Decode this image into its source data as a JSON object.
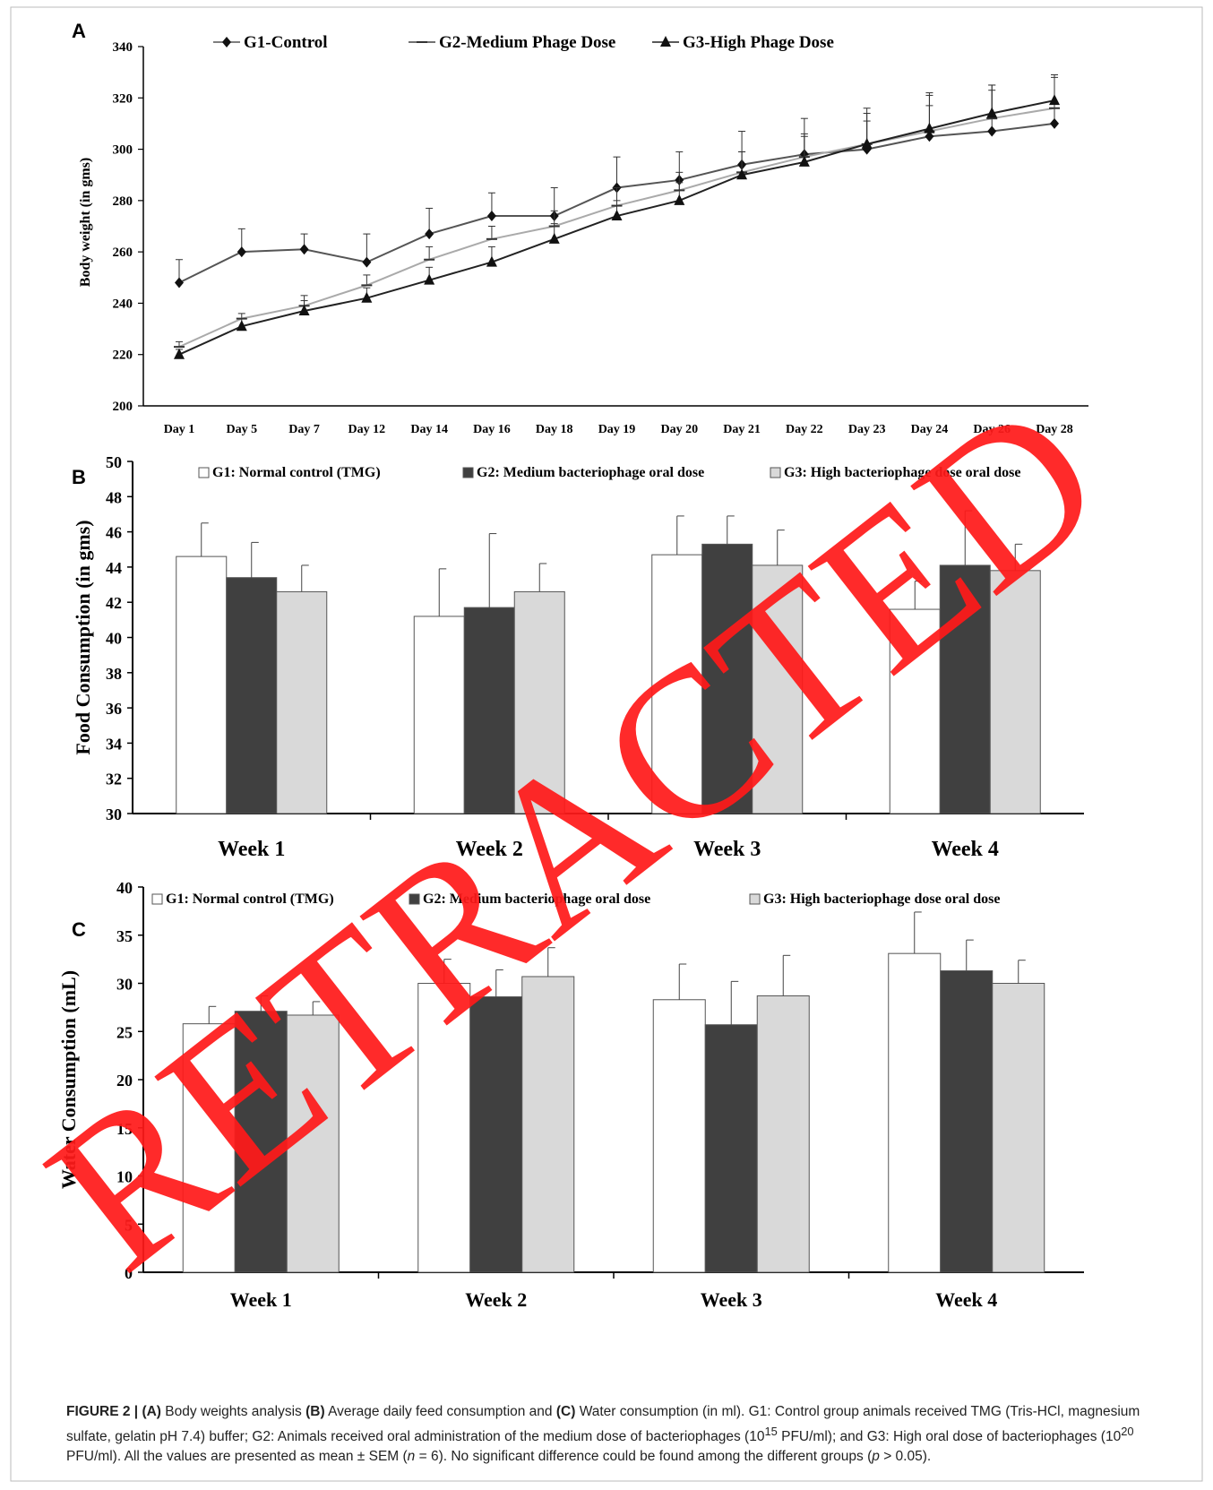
{
  "chart_data": [
    {
      "panel": "A",
      "type": "line",
      "ylabel": "Body weight (in gms)",
      "xlabel": "",
      "ylim": [
        200,
        340
      ],
      "yticks": [
        200,
        220,
        240,
        260,
        280,
        300,
        320,
        340
      ],
      "categories": [
        "Day 1",
        "Day 5",
        "Day 7",
        "Day 12",
        "Day 14",
        "Day 16",
        "Day 18",
        "Day 19",
        "Day 20",
        "Day 21",
        "Day 22",
        "Day 23",
        "Day 24",
        "Day 26",
        "Day 28"
      ],
      "legend_position": "top",
      "series": [
        {
          "name": "G1-Control",
          "marker": "diamond",
          "color": "#555555",
          "values": [
            248,
            260,
            261,
            256,
            267,
            274,
            274,
            285,
            288,
            294,
            298,
            300,
            305,
            307,
            310
          ],
          "err": [
            9,
            9,
            6,
            11,
            10,
            9,
            11,
            12,
            11,
            13,
            14,
            16,
            17,
            18,
            19
          ]
        },
        {
          "name": "G2-Medium Phage Dose",
          "marker": "dash",
          "color": "#aaaaaa",
          "values": [
            223,
            234,
            239,
            247,
            257,
            265,
            270,
            278,
            284,
            291,
            297,
            302,
            307,
            312,
            316
          ],
          "err": [
            2,
            2,
            4,
            4,
            5,
            5,
            6,
            7,
            7,
            8,
            9,
            9,
            10,
            11,
            12
          ]
        },
        {
          "name": "G3-High Phage Dose",
          "marker": "triangle",
          "color": "#222222",
          "values": [
            220,
            231,
            237,
            242,
            249,
            256,
            265,
            274,
            280,
            290,
            295,
            302,
            308,
            314,
            319
          ],
          "err": [
            2,
            3,
            4,
            4,
            5,
            6,
            6,
            6,
            7,
            9,
            10,
            12,
            13,
            11,
            10
          ]
        }
      ]
    },
    {
      "panel": "B",
      "type": "bar",
      "ylabel": "Food Consumption (in gms)",
      "xlabel": "",
      "ylim": [
        30,
        50
      ],
      "yticks": [
        30,
        32,
        34,
        36,
        38,
        40,
        42,
        44,
        46,
        48,
        50
      ],
      "categories": [
        "Week 1",
        "Week 2",
        "Week 3",
        "Week 4"
      ],
      "legend_position": "top",
      "series": [
        {
          "name": "G1: Normal control (TMG)",
          "color": "#ffffff",
          "values": [
            44.6,
            41.2,
            44.7,
            41.6
          ],
          "err": [
            1.9,
            2.7,
            2.2,
            1.6
          ]
        },
        {
          "name": "G2: Medium bacteriophage oral dose",
          "color": "#404040",
          "values": [
            43.4,
            41.7,
            45.3,
            44.1
          ],
          "err": [
            2.0,
            4.2,
            1.6,
            3.1
          ]
        },
        {
          "name": "G3: High bacteriophage dose oral dose",
          "color": "#d9d9d9",
          "values": [
            42.6,
            42.6,
            44.1,
            43.8
          ],
          "err": [
            1.5,
            1.6,
            2.0,
            1.5
          ]
        }
      ]
    },
    {
      "panel": "C",
      "type": "bar",
      "ylabel": "Water Consumption (mL)",
      "xlabel": "",
      "ylim": [
        0,
        40
      ],
      "yticks": [
        0,
        5,
        10,
        15,
        20,
        25,
        30,
        35,
        40
      ],
      "categories": [
        "Week 1",
        "Week 2",
        "Week 3",
        "Week 4"
      ],
      "legend_position": "top",
      "series": [
        {
          "name": "G1: Normal control (TMG)",
          "color": "#ffffff",
          "values": [
            25.8,
            30.0,
            28.3,
            33.1
          ],
          "err": [
            1.8,
            2.5,
            3.7,
            4.3
          ]
        },
        {
          "name": "G2: Medium bacteriophage oral dose",
          "color": "#404040",
          "values": [
            27.1,
            28.6,
            25.7,
            31.3
          ],
          "err": [
            1.6,
            2.8,
            4.5,
            3.2
          ]
        },
        {
          "name": "G3: High bacteriophage dose oral dose",
          "color": "#d9d9d9",
          "values": [
            26.7,
            30.7,
            28.7,
            30.0
          ],
          "err": [
            1.4,
            3.0,
            4.2,
            2.4
          ]
        }
      ]
    }
  ],
  "watermark": {
    "text": "RETRACTED",
    "color": "#ff0000"
  },
  "caption": {
    "label": "FIGURE 2 |",
    "a_tag": "(A)",
    "a_text": " Body weights analysis ",
    "b_tag": "(B)",
    "b_text": " Average daily feed consumption and ",
    "c_tag": "(C)",
    "c_text": " Water consumption (in ml). G1: Control group animals received TMG (Tris-HCl, magnesium sulfate, gelatin pH 7.4) buffer; G2: Animals received oral administration of the medium dose of bacteriophages (10",
    "sup1": "15",
    "text2": " PFU/ml); and G3: High oral dose of bacteriophages (10",
    "sup2": "20",
    "text3": " PFU/ml). All the values are presented as mean ± SEM (",
    "n_var": "n",
    "text4": " = 6). No significant difference could be found among the different groups (",
    "p_var": "p",
    "text5": " > 0.05)."
  }
}
